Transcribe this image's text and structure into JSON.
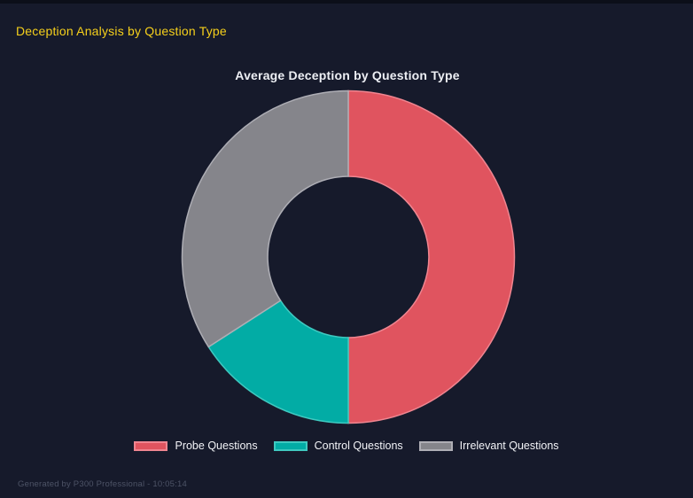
{
  "page": {
    "title": "Deception Analysis by Question Type"
  },
  "theme": {
    "background": "#161A2B",
    "page_title_color": "#F6D01B",
    "chart_title_color": "#EDEFF4",
    "legend_text_color": "#F2F3F7",
    "footer_text_color": "#4D5366"
  },
  "chart_data": {
    "type": "pie",
    "subtype": "doughnut",
    "title": "Average Deception by Question Type",
    "labels": [
      "Probe Questions",
      "Control Questions",
      "Irrelevant Questions"
    ],
    "values_percent": [
      50.0,
      15.9,
      34.1
    ],
    "colors": [
      "#E0545F",
      "#02ACA5",
      "#85858B"
    ],
    "border_colors": [
      "#EF8590",
      "#3FC9C0",
      "#AEAEB5"
    ],
    "legend_position": "bottom",
    "cutout_ratio": 0.485,
    "start_angle_deg": 0,
    "direction": "clockwise"
  },
  "footer": {
    "text": "Generated by P300 Professional - 10:05:14"
  }
}
